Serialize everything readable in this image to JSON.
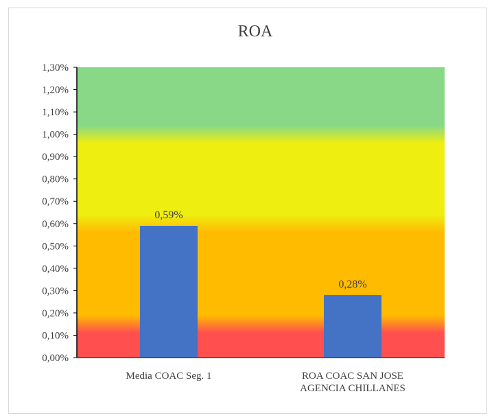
{
  "chart_data": {
    "type": "bar",
    "title": "ROA",
    "categories": [
      [
        "Media COAC Seg. 1"
      ],
      [
        "ROA COAC SAN JOSE",
        "AGENCIA CHILLANES"
      ]
    ],
    "values": [
      0.59,
      0.28
    ],
    "data_labels": [
      "0,59%",
      "0,28%"
    ],
    "ylim": [
      0,
      1.3
    ],
    "yticks": [
      0,
      0.1,
      0.2,
      0.3,
      0.4,
      0.5,
      0.6,
      0.7,
      0.8,
      0.9,
      1.0,
      1.1,
      1.2,
      1.3
    ],
    "ytick_labels": [
      "0,00%",
      "0,10%",
      "0,20%",
      "0,30%",
      "0,40%",
      "0,50%",
      "0,60%",
      "0,70%",
      "0,80%",
      "0,90%",
      "1,00%",
      "1,10%",
      "1,20%",
      "1,30%"
    ],
    "bar_color": "#4472c4",
    "background_bands": [
      {
        "from": 0.0,
        "to": 0.15,
        "color": "#ff4f4f"
      },
      {
        "from": 0.15,
        "to": 0.6,
        "color": "#ffbb00"
      },
      {
        "from": 0.6,
        "to": 1.0,
        "color": "#eeee11"
      },
      {
        "from": 1.0,
        "to": 1.3,
        "color": "#88d888"
      }
    ],
    "grid": false,
    "legend": "none"
  }
}
